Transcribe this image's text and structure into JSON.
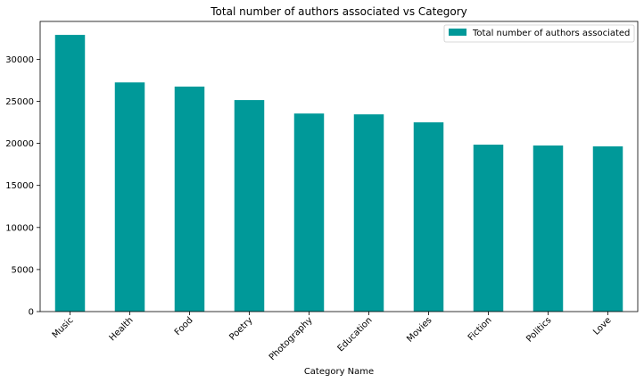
{
  "chart_data": {
    "type": "bar",
    "title": "Total number of authors associated vs Category",
    "xlabel": "Category Name",
    "ylabel": "",
    "categories": [
      "Music",
      "Health",
      "Food",
      "Poetry",
      "Photography",
      "Education",
      "Movies",
      "Fiction",
      "Politics",
      "Love"
    ],
    "series": [
      {
        "name": "Total number of authors associated",
        "color": "#009999",
        "values": [
          32900,
          27250,
          26750,
          25150,
          23550,
          23450,
          22500,
          19850,
          19750,
          19650
        ]
      }
    ],
    "ylim": [
      0,
      34500
    ],
    "yticks": [
      0,
      5000,
      10000,
      15000,
      20000,
      25000,
      30000
    ],
    "grid": false,
    "legend_position": "top-right"
  }
}
